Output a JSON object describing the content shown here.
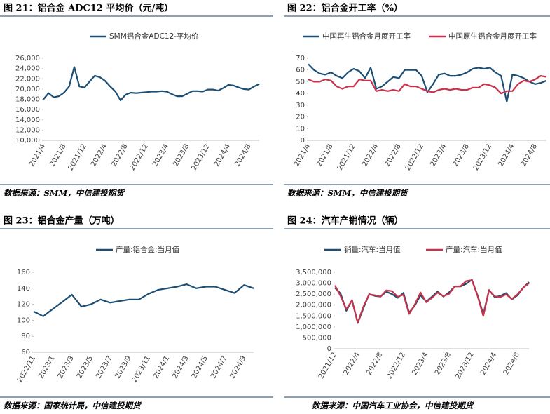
{
  "chart_data": [
    {
      "type": "line",
      "title": "图 21：铝合金 ADC12 平均价（元/吨）",
      "source": "数据来源：SMM，中信建投期货",
      "categories": [
        "2021/4",
        null,
        null,
        null,
        "2021/8",
        null,
        null,
        null,
        "2021/12",
        null,
        null,
        null,
        "2022/4",
        null,
        null,
        null,
        "2022/8",
        null,
        null,
        null,
        "2022/12",
        null,
        null,
        null,
        "2023/4",
        null,
        null,
        null,
        "2023/8",
        null,
        null,
        null,
        "2023/12",
        null,
        null,
        null,
        "2024/4",
        null,
        null,
        null,
        "2024/8",
        null,
        null
      ],
      "series": [
        {
          "name": "SMM铝合金ADC12-平均价",
          "color": "#1d4e74",
          "values": [
            18000,
            19200,
            18400,
            18600,
            19300,
            20500,
            24300,
            20500,
            20300,
            21500,
            22600,
            22300,
            21600,
            20500,
            19500,
            17800,
            18900,
            19300,
            19200,
            19300,
            19400,
            19500,
            19500,
            19600,
            19500,
            19000,
            18600,
            18600,
            19100,
            19600,
            19600,
            19500,
            19900,
            19900,
            19700,
            20200,
            20800,
            20700,
            20300,
            20000,
            19900,
            20500,
            21000
          ]
        }
      ],
      "ylim": [
        10000,
        26000
      ],
      "yticks": [
        {
          "value": 10000,
          "label": "10,000"
        },
        {
          "value": 12000,
          "label": "12,000"
        },
        {
          "value": 14000,
          "label": "14,000"
        },
        {
          "value": 16000,
          "label": "16,000"
        },
        {
          "value": 18000,
          "label": "18,000"
        },
        {
          "value": 20000,
          "label": "20,000"
        },
        {
          "value": 22000,
          "label": "22,000"
        },
        {
          "value": 24000,
          "label": "24,000"
        },
        {
          "value": 26000,
          "label": "26,000"
        }
      ]
    },
    {
      "type": "line",
      "title": "图 22：铝合金开工率（%）",
      "source": "数据来源：SMM，中信建投期货",
      "categories": [
        "2021/4",
        null,
        null,
        null,
        "2021/8",
        null,
        null,
        null,
        "2021/12",
        null,
        null,
        null,
        "2022/4",
        null,
        null,
        null,
        "2022/8",
        null,
        null,
        null,
        "2022/12",
        null,
        null,
        null,
        "2023/4",
        null,
        null,
        null,
        "2023/8",
        null,
        null,
        null,
        "2023/12",
        null,
        null,
        null,
        "2024/4",
        null,
        null,
        null,
        "2024/8",
        null,
        null
      ],
      "series": [
        {
          "name": "中国再生铝合金月度开工率",
          "color": "#1d4e74",
          "values": [
            65,
            60,
            57,
            56,
            58,
            55,
            53,
            58,
            61,
            59,
            53,
            62,
            44,
            46,
            50,
            54,
            53,
            60,
            60,
            60,
            55,
            41,
            48,
            56,
            57,
            55,
            55,
            56,
            58,
            61,
            62,
            61,
            62,
            58,
            55,
            33,
            56,
            55,
            53,
            50,
            48,
            49,
            51
          ]
        },
        {
          "name": "中国原生铝合金月度开工率",
          "color": "#c8324a",
          "values": [
            52,
            50,
            50,
            52,
            51,
            46,
            44,
            46,
            46,
            52,
            51,
            51,
            42,
            43,
            42,
            43,
            42,
            48,
            46,
            46,
            44,
            42,
            41,
            43,
            44,
            43,
            44,
            43,
            43,
            45,
            45,
            48,
            47,
            45,
            40,
            42,
            42,
            48,
            51,
            50,
            52,
            55,
            54
          ]
        }
      ],
      "ylim": [
        0,
        70
      ],
      "yticks": [
        0,
        10,
        20,
        30,
        40,
        50,
        60,
        70
      ]
    },
    {
      "type": "line",
      "title": "图 23：铝合金产量（万吨）",
      "source": "数据来源：国家统计局，中信建投期货",
      "categories": [
        "2022/11",
        null,
        "2023/1",
        null,
        "2023/3",
        null,
        "2023/5",
        null,
        "2023/7",
        null,
        "2023/9",
        null,
        "2023/11",
        null,
        "2024/1",
        null,
        "2024/3",
        null,
        "2024/5",
        null,
        "2024/7",
        null,
        "2024/9",
        null
      ],
      "series": [
        {
          "name": "产量:铝合金:当月值",
          "color": "#1d4e74",
          "values": [
            111,
            105,
            114,
            123,
            132,
            117,
            120,
            126,
            122,
            124,
            126,
            126,
            133,
            138,
            140,
            142,
            145,
            140,
            142,
            142,
            138,
            134,
            144,
            140
          ]
        }
      ],
      "ylim": [
        60,
        160
      ],
      "yticks": [
        60,
        80,
        100,
        120,
        140,
        160
      ]
    },
    {
      "type": "line",
      "title": "图 24：汽车产销情况（辆）",
      "source": "数据来源：中国汽车工业协会，中信建投期货",
      "categories": [
        "2021/12",
        null,
        null,
        null,
        "2022/4",
        null,
        null,
        null,
        "2022/8",
        null,
        null,
        null,
        "2022/12",
        null,
        null,
        null,
        "2023/4",
        null,
        null,
        null,
        "2023/8",
        null,
        null,
        null,
        "2023/12",
        null,
        null,
        null,
        "2024/4",
        null,
        null,
        null,
        "2024/8",
        null,
        null
      ],
      "series": [
        {
          "name": "销量:汽车:当月值",
          "color": "#1d4e74",
          "values": [
            2790000,
            2530000,
            1740000,
            2230000,
            1180000,
            1860000,
            2500000,
            2420000,
            2390000,
            2610000,
            2500000,
            2330000,
            2560000,
            1650000,
            1980000,
            2450000,
            2160000,
            2380000,
            2620000,
            2390000,
            2580000,
            2850000,
            2850000,
            2970000,
            3160000,
            2440000,
            1580000,
            2690000,
            2360000,
            2420000,
            2550000,
            2260000,
            2450000,
            2800000,
            3050000
          ]
        },
        {
          "name": "产量:汽车:当月值",
          "color": "#c8324a",
          "values": [
            2900000,
            2410000,
            1810000,
            2210000,
            1200000,
            1930000,
            2490000,
            2450000,
            2390000,
            2670000,
            2640000,
            2380000,
            2480000,
            1590000,
            2030000,
            2580000,
            2130000,
            2330000,
            2570000,
            2410000,
            2510000,
            2850000,
            2860000,
            3100000,
            3140000,
            2410000,
            1500000,
            2680000,
            2400000,
            2370000,
            2490000,
            2280000,
            2490000,
            2800000,
            3000000
          ]
        }
      ],
      "ylim": [
        0,
        3500000
      ],
      "yticks": [
        {
          "value": 0,
          "label": "0"
        },
        {
          "value": 500000,
          "label": "500,000"
        },
        {
          "value": 1000000,
          "label": "1,000,000"
        },
        {
          "value": 1500000,
          "label": "1,500,000"
        },
        {
          "value": 2000000,
          "label": "2,000,000"
        },
        {
          "value": 2500000,
          "label": "2,500,000"
        },
        {
          "value": 3000000,
          "label": "3,000,000"
        },
        {
          "value": 3500000,
          "label": "3,500,000"
        }
      ]
    }
  ]
}
